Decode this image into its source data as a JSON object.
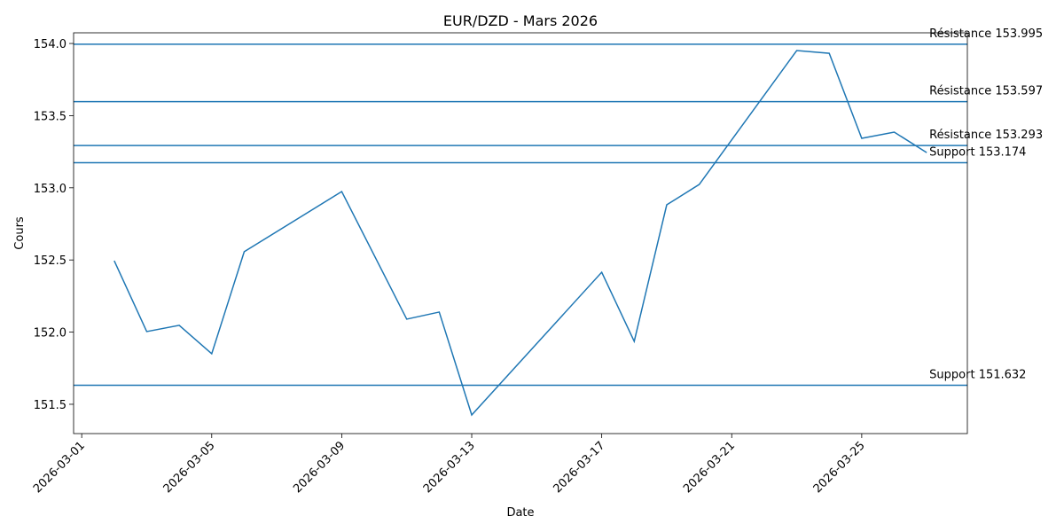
{
  "chart_data": {
    "type": "line",
    "title": "EUR/DZD - Mars 2026",
    "x_label": "Date",
    "y_label": "Cours",
    "x": [
      "2026-03-02",
      "2026-03-03",
      "2026-03-04",
      "2026-03-05",
      "2026-03-06",
      "2026-03-09",
      "2026-03-11",
      "2026-03-12",
      "2026-03-13",
      "2026-03-17",
      "2026-03-18",
      "2026-03-19",
      "2026-03-20",
      "2026-03-23",
      "2026-03-24",
      "2026-03-25",
      "2026-03-26",
      "2026-03-27"
    ],
    "series": [
      {
        "color": "#1f77b4",
        "values": [
          152.495,
          152.004,
          152.047,
          151.85,
          152.557,
          152.974,
          152.09,
          152.139,
          151.426,
          152.415,
          151.936,
          152.882,
          153.023,
          153.951,
          153.932,
          153.343,
          153.386,
          153.244
        ]
      }
    ],
    "levels": [
      {
        "label": "Résistance 153.995",
        "value": 153.995
      },
      {
        "label": "Résistance 153.597",
        "value": 153.597
      },
      {
        "label": "Résistance 153.293",
        "value": 153.293
      },
      {
        "label": "Support 153.174",
        "value": 153.174
      },
      {
        "label": "Support 151.632",
        "value": 151.632
      }
    ],
    "level_color": "#1f77b4",
    "xlim": [
      "2026-02-28T18:00",
      "2026-03-28T06:00"
    ],
    "xticks": [
      "2026-03-01",
      "2026-03-05",
      "2026-03-09",
      "2026-03-13",
      "2026-03-17",
      "2026-03-21",
      "2026-03-25"
    ],
    "ylim": [
      151.297,
      154.074
    ],
    "yticks": [
      151.5,
      {
        "value": 152,
        "label": "152.0"
      },
      152.5,
      {
        "value": 153,
        "label": "153.0"
      },
      153.5,
      {
        "value": 154,
        "label": "154.0"
      }
    ],
    "grid": false
  }
}
